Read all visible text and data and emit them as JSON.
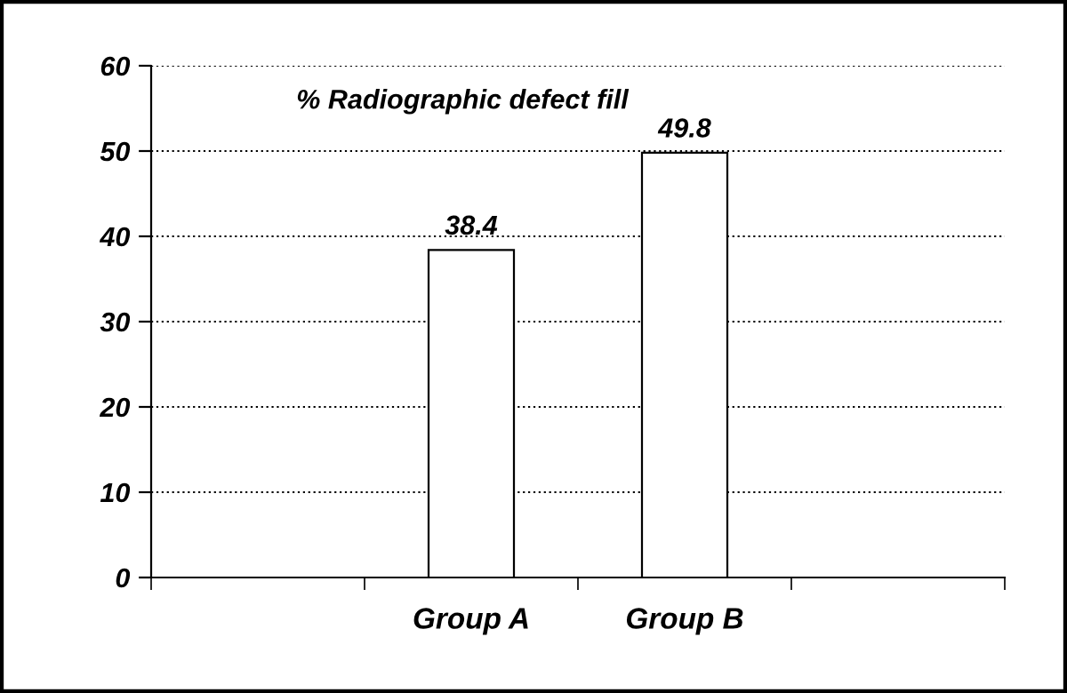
{
  "chart_data": {
    "type": "bar",
    "title": "% Radiographic defect fill",
    "categories": [
      null,
      "Group A",
      "Group B",
      null
    ],
    "values": [
      null,
      38.4,
      49.8,
      null
    ],
    "color": "#ffffff",
    "data_labels": true,
    "ylim": [
      0,
      60
    ],
    "yticks": [
      0,
      10,
      20,
      30,
      40,
      50,
      60
    ],
    "grid": "y",
    "legend": false
  }
}
